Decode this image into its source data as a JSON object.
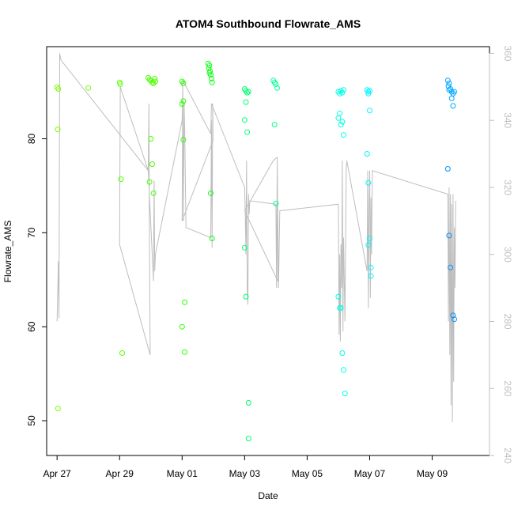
{
  "chart_data": {
    "type": "scatter",
    "title": "ATOM4 Southbound Flowrate_AMS",
    "xlabel": "Date",
    "ylabel": "Flowrate_AMS",
    "xlim": [
      "2024-04-26T16:00",
      "2024-05-10T20:00"
    ],
    "ylim": [
      46.3,
      89.8
    ],
    "y2lim": [
      240,
      362
    ],
    "x_ticks": [
      "Apr 27",
      "Apr 29",
      "May 01",
      "May 03",
      "May 05",
      "May 07",
      "May 09"
    ],
    "x_tick_dates": [
      "2024-04-27",
      "2024-04-29",
      "2024-05-01",
      "2024-05-03",
      "2024-05-05",
      "2024-05-07",
      "2024-05-09"
    ],
    "y_ticks": [
      50,
      60,
      70,
      80
    ],
    "y2_ticks": [
      240,
      260,
      280,
      300,
      320,
      340,
      360
    ],
    "grid": false,
    "colors": {
      "grey_line": "#bebebe",
      "axis": "#000000",
      "right_axis": "#bfbfbf"
    },
    "series": [
      {
        "kind": "points",
        "points": [
          [
            "2024-04-27T00:00",
            85.5,
            "#7dff00"
          ],
          [
            "2024-04-27T01:00",
            85.3,
            "#7dff00"
          ],
          [
            "2024-04-27T00:30",
            81.0,
            "#7dff00"
          ],
          [
            "2024-04-27T00:40",
            51.3,
            "#7dff00"
          ],
          [
            "2024-04-28T00:00",
            85.4,
            "#6dff00"
          ],
          [
            "2024-04-29T00:00",
            86.0,
            "#5cff00"
          ],
          [
            "2024-04-29T00:30",
            85.8,
            "#5cff00"
          ],
          [
            "2024-04-29T01:00",
            75.7,
            "#5cff00"
          ],
          [
            "2024-04-29T02:00",
            57.2,
            "#5cff00"
          ],
          [
            "2024-04-29T22:00",
            86.5,
            "#4cff00"
          ],
          [
            "2024-04-29T23:00",
            86.3,
            "#4cff00"
          ],
          [
            "2024-04-30T00:00",
            86.2,
            "#4cff00"
          ],
          [
            "2024-04-30T01:00",
            86.0,
            "#4cff00"
          ],
          [
            "2024-04-30T02:00",
            85.9,
            "#4cff00"
          ],
          [
            "2024-04-30T03:00",
            86.4,
            "#4cff00"
          ],
          [
            "2024-04-30T03:30",
            86.1,
            "#4cff00"
          ],
          [
            "2024-04-29T23:00",
            75.4,
            "#4cff00"
          ],
          [
            "2024-04-30T00:00",
            80.0,
            "#4cff00"
          ],
          [
            "2024-04-30T01:00",
            77.3,
            "#4cff00"
          ],
          [
            "2024-04-30T02:00",
            74.2,
            "#4cff00"
          ],
          [
            "2024-05-01T00:00",
            86.1,
            "#2bff00"
          ],
          [
            "2024-05-01T01:00",
            85.9,
            "#2bff00"
          ],
          [
            "2024-05-01T01:00",
            84.0,
            "#2bff00"
          ],
          [
            "2024-05-01T00:00",
            83.7,
            "#2bff00"
          ],
          [
            "2024-05-01T01:00",
            79.9,
            "#2bff00"
          ],
          [
            "2024-05-01T02:00",
            62.6,
            "#2bff00"
          ],
          [
            "2024-05-01T00:00",
            60.0,
            "#2bff00"
          ],
          [
            "2024-05-01T02:00",
            57.3,
            "#2bff00"
          ],
          [
            "2024-05-01T20:00",
            88.0,
            "#0aff14"
          ],
          [
            "2024-05-01T20:30",
            87.5,
            "#0aff14"
          ],
          [
            "2024-05-01T21:00",
            87.8,
            "#0aff14"
          ],
          [
            "2024-05-01T21:30",
            87.2,
            "#0aff14"
          ],
          [
            "2024-05-01T22:00",
            86.8,
            "#0aff14"
          ],
          [
            "2024-05-01T22:30",
            86.4,
            "#0aff14"
          ],
          [
            "2024-05-01T23:00",
            86.0,
            "#0aff14"
          ],
          [
            "2024-05-01T21:00",
            87.0,
            "#0aff14"
          ],
          [
            "2024-05-01T22:00",
            74.2,
            "#0aff14"
          ],
          [
            "2024-05-01T23:00",
            69.4,
            "#0aff14"
          ],
          [
            "2024-05-03T00:00",
            85.3,
            "#00ff70"
          ],
          [
            "2024-05-03T01:00",
            85.1,
            "#00ff70"
          ],
          [
            "2024-05-03T02:00",
            84.9,
            "#00ff70"
          ],
          [
            "2024-05-03T03:00",
            85.0,
            "#00ff70"
          ],
          [
            "2024-05-03T01:00",
            83.9,
            "#00ff70"
          ],
          [
            "2024-05-03T00:00",
            82.0,
            "#00ff70"
          ],
          [
            "2024-05-03T02:00",
            80.7,
            "#00ff70"
          ],
          [
            "2024-05-03T00:00",
            68.4,
            "#00ff70"
          ],
          [
            "2024-05-03T01:00",
            63.2,
            "#00ff70"
          ],
          [
            "2024-05-03T03:00",
            51.9,
            "#00ff70"
          ],
          [
            "2024-05-03T03:00",
            48.1,
            "#00ff70"
          ],
          [
            "2024-05-03T22:00",
            86.2,
            "#00ff94"
          ],
          [
            "2024-05-03T23:00",
            86.0,
            "#00ff94"
          ],
          [
            "2024-05-04T00:00",
            85.8,
            "#00ff94"
          ],
          [
            "2024-05-04T01:00",
            85.4,
            "#00ff94"
          ],
          [
            "2024-05-03T23:00",
            81.5,
            "#00ff94"
          ],
          [
            "2024-05-04T00:00",
            73.1,
            "#00ff94"
          ],
          [
            "2024-05-06T00:00",
            85.0,
            "#00ffe6"
          ],
          [
            "2024-05-06T01:00",
            84.8,
            "#00ffe6"
          ],
          [
            "2024-05-06T02:00",
            85.1,
            "#00ffe6"
          ],
          [
            "2024-05-06T03:00",
            84.9,
            "#00ffe6"
          ],
          [
            "2024-05-06T04:00",
            85.2,
            "#00ffe6"
          ],
          [
            "2024-05-06T00:00",
            82.2,
            "#00ffe6"
          ],
          [
            "2024-05-06T01:00",
            82.7,
            "#00ffe6"
          ],
          [
            "2024-05-06T02:00",
            81.5,
            "#00ffe6"
          ],
          [
            "2024-05-06T03:00",
            81.8,
            "#00ffe6"
          ],
          [
            "2024-05-06T04:00",
            80.4,
            "#00ffe6"
          ],
          [
            "2024-05-06T00:00",
            63.2,
            "#00ffe6"
          ],
          [
            "2024-05-06T01:00",
            62.0,
            "#00ffe6"
          ],
          [
            "2024-05-06T02:00",
            62.0,
            "#00ffe6"
          ],
          [
            "2024-05-06T03:00",
            57.2,
            "#00ffe6"
          ],
          [
            "2024-05-06T04:00",
            55.4,
            "#00ffe6"
          ],
          [
            "2024-05-06T05:00",
            52.9,
            "#00ffe6"
          ],
          [
            "2024-05-06T22:00",
            85.2,
            "#00f7ff"
          ],
          [
            "2024-05-06T23:00",
            85.0,
            "#00f7ff"
          ],
          [
            "2024-05-07T00:00",
            85.1,
            "#00f7ff"
          ],
          [
            "2024-05-06T23:00",
            84.8,
            "#00f7ff"
          ],
          [
            "2024-05-07T00:00",
            83.0,
            "#00f7ff"
          ],
          [
            "2024-05-06T22:00",
            78.4,
            "#00f7ff"
          ],
          [
            "2024-05-06T23:00",
            75.3,
            "#00f7ff"
          ],
          [
            "2024-05-07T00:00",
            69.4,
            "#00f7ff"
          ],
          [
            "2024-05-06T23:00",
            68.7,
            "#00f7ff"
          ],
          [
            "2024-05-07T01:00",
            66.3,
            "#00f7ff"
          ],
          [
            "2024-05-07T01:00",
            65.4,
            "#00f7ff"
          ],
          [
            "2024-05-09T12:00",
            86.2,
            "#00a8ff"
          ],
          [
            "2024-05-09T13:00",
            85.9,
            "#00a8ff"
          ],
          [
            "2024-05-09T12:30",
            85.6,
            "#00a8ff"
          ],
          [
            "2024-05-09T13:00",
            85.2,
            "#00a8ff"
          ],
          [
            "2024-05-09T14:00",
            85.3,
            "#00a8ff"
          ],
          [
            "2024-05-09T15:00",
            85.0,
            "#00a8ff"
          ],
          [
            "2024-05-09T16:00",
            84.8,
            "#00a8ff"
          ],
          [
            "2024-05-09T17:00",
            85.0,
            "#00a8ff"
          ],
          [
            "2024-05-09T15:00",
            84.3,
            "#00a8ff"
          ],
          [
            "2024-05-09T16:00",
            83.5,
            "#00a8ff"
          ],
          [
            "2024-05-09T12:00",
            76.8,
            "#0092ff"
          ],
          [
            "2024-05-09T13:00",
            69.7,
            "#0092ff"
          ],
          [
            "2024-05-09T14:00",
            66.3,
            "#0092ff"
          ],
          [
            "2024-05-09T16:00",
            61.2,
            "#0092ff"
          ],
          [
            "2024-05-09T17:00",
            60.8,
            "#0092ff"
          ]
        ]
      },
      {
        "kind": "line",
        "color": "#bebebe",
        "axis": "right",
        "points": [
          [
            "2024-04-27T00:00",
            280
          ],
          [
            "2024-04-27T01:00",
            298
          ],
          [
            "2024-04-27T01:30",
            281
          ],
          [
            "2024-04-27T02:00",
            360
          ],
          [
            "2024-04-27T03:00",
            358
          ],
          [
            "2024-04-29T22:00",
            325
          ],
          [
            "2024-04-29T22:30",
            345
          ],
          [
            "2024-04-29T23:00",
            300
          ],
          [
            "2024-04-29T23:30",
            270
          ],
          [
            "2024-04-29T00:00",
            303
          ],
          [
            "2024-04-29T00:30",
            350
          ],
          [
            "2024-04-29T22:00",
            325
          ],
          [
            "2024-04-30T02:00",
            292
          ],
          [
            "2024-04-30T02:30",
            322
          ],
          [
            "2024-04-30T03:00",
            295
          ],
          [
            "2024-04-30T03:30",
            300
          ],
          [
            "2024-05-01T00:00",
            340
          ],
          [
            "2024-05-01T00:30",
            350
          ],
          [
            "2024-05-01T01:00",
            310
          ],
          [
            "2024-05-01T01:30",
            345
          ],
          [
            "2024-05-01T02:00",
            337
          ],
          [
            "2024-05-01T03:00",
            308
          ],
          [
            "2024-05-01T22:00",
            305
          ],
          [
            "2024-05-01T22:30",
            340
          ],
          [
            "2024-05-01T23:00",
            302
          ],
          [
            "2024-05-01T23:30",
            345
          ],
          [
            "2024-05-01T23:45",
            334
          ],
          [
            "2024-05-01T00:00",
            310
          ],
          [
            "2024-05-01T00:30",
            352
          ],
          [
            "2024-05-01T22:00",
            336
          ],
          [
            "2024-05-01T22:30",
            345
          ],
          [
            "2024-05-03T00:00",
            320
          ],
          [
            "2024-05-03T00:30",
            311
          ],
          [
            "2024-05-03T01:00",
            300
          ],
          [
            "2024-05-03T01:30",
            328
          ],
          [
            "2024-05-03T02:00",
            290
          ],
          [
            "2024-05-03T02:30",
            285
          ],
          [
            "2024-05-03T03:00",
            318
          ],
          [
            "2024-05-03T03:30",
            312
          ],
          [
            "2024-05-03T04:00",
            316
          ],
          [
            "2024-05-04T00:00",
            315
          ],
          [
            "2024-05-04T00:30",
            290
          ],
          [
            "2024-05-04T01:00",
            326
          ],
          [
            "2024-05-04T01:30",
            292
          ],
          [
            "2024-05-03T00:00",
            313
          ],
          [
            "2024-05-03T22:00",
            328
          ],
          [
            "2024-05-04T01:00",
            329
          ],
          [
            "2024-05-04T02:00",
            290
          ],
          [
            "2024-05-04T03:00",
            313
          ],
          [
            "2024-05-06T00:00",
            315
          ],
          [
            "2024-05-06T00:30",
            276
          ],
          [
            "2024-05-06T01:00",
            300
          ],
          [
            "2024-05-06T01:30",
            274
          ],
          [
            "2024-05-06T02:00",
            303
          ],
          [
            "2024-05-06T02:30",
            290
          ],
          [
            "2024-05-06T03:00",
            328
          ],
          [
            "2024-05-06T03:30",
            277
          ],
          [
            "2024-05-06T04:00",
            305
          ],
          [
            "2024-05-06T05:00",
            280
          ],
          [
            "2024-05-06T06:00",
            325
          ],
          [
            "2024-05-06T06:30",
            328
          ],
          [
            "2024-05-06T22:00",
            295
          ],
          [
            "2024-05-06T22:30",
            325
          ],
          [
            "2024-05-06T23:00",
            284
          ],
          [
            "2024-05-06T23:30",
            312
          ],
          [
            "2024-05-07T00:00",
            325
          ],
          [
            "2024-05-07T00:30",
            287
          ],
          [
            "2024-05-07T01:00",
            317
          ],
          [
            "2024-05-07T01:30",
            300
          ],
          [
            "2024-05-07T02:00",
            325
          ],
          [
            "2024-05-09T12:00",
            318
          ],
          [
            "2024-05-09T12:30",
            280
          ],
          [
            "2024-05-09T13:00",
            320
          ],
          [
            "2024-05-09T13:30",
            270
          ],
          [
            "2024-05-09T14:00",
            318
          ],
          [
            "2024-05-09T14:30",
            255
          ],
          [
            "2024-05-09T15:00",
            315
          ],
          [
            "2024-05-09T15:30",
            250
          ],
          [
            "2024-05-09T16:00",
            318
          ],
          [
            "2024-05-09T16:30",
            262
          ],
          [
            "2024-05-09T17:00",
            308
          ],
          [
            "2024-05-09T17:30",
            290
          ],
          [
            "2024-05-09T18:00",
            316
          ]
        ]
      }
    ]
  }
}
